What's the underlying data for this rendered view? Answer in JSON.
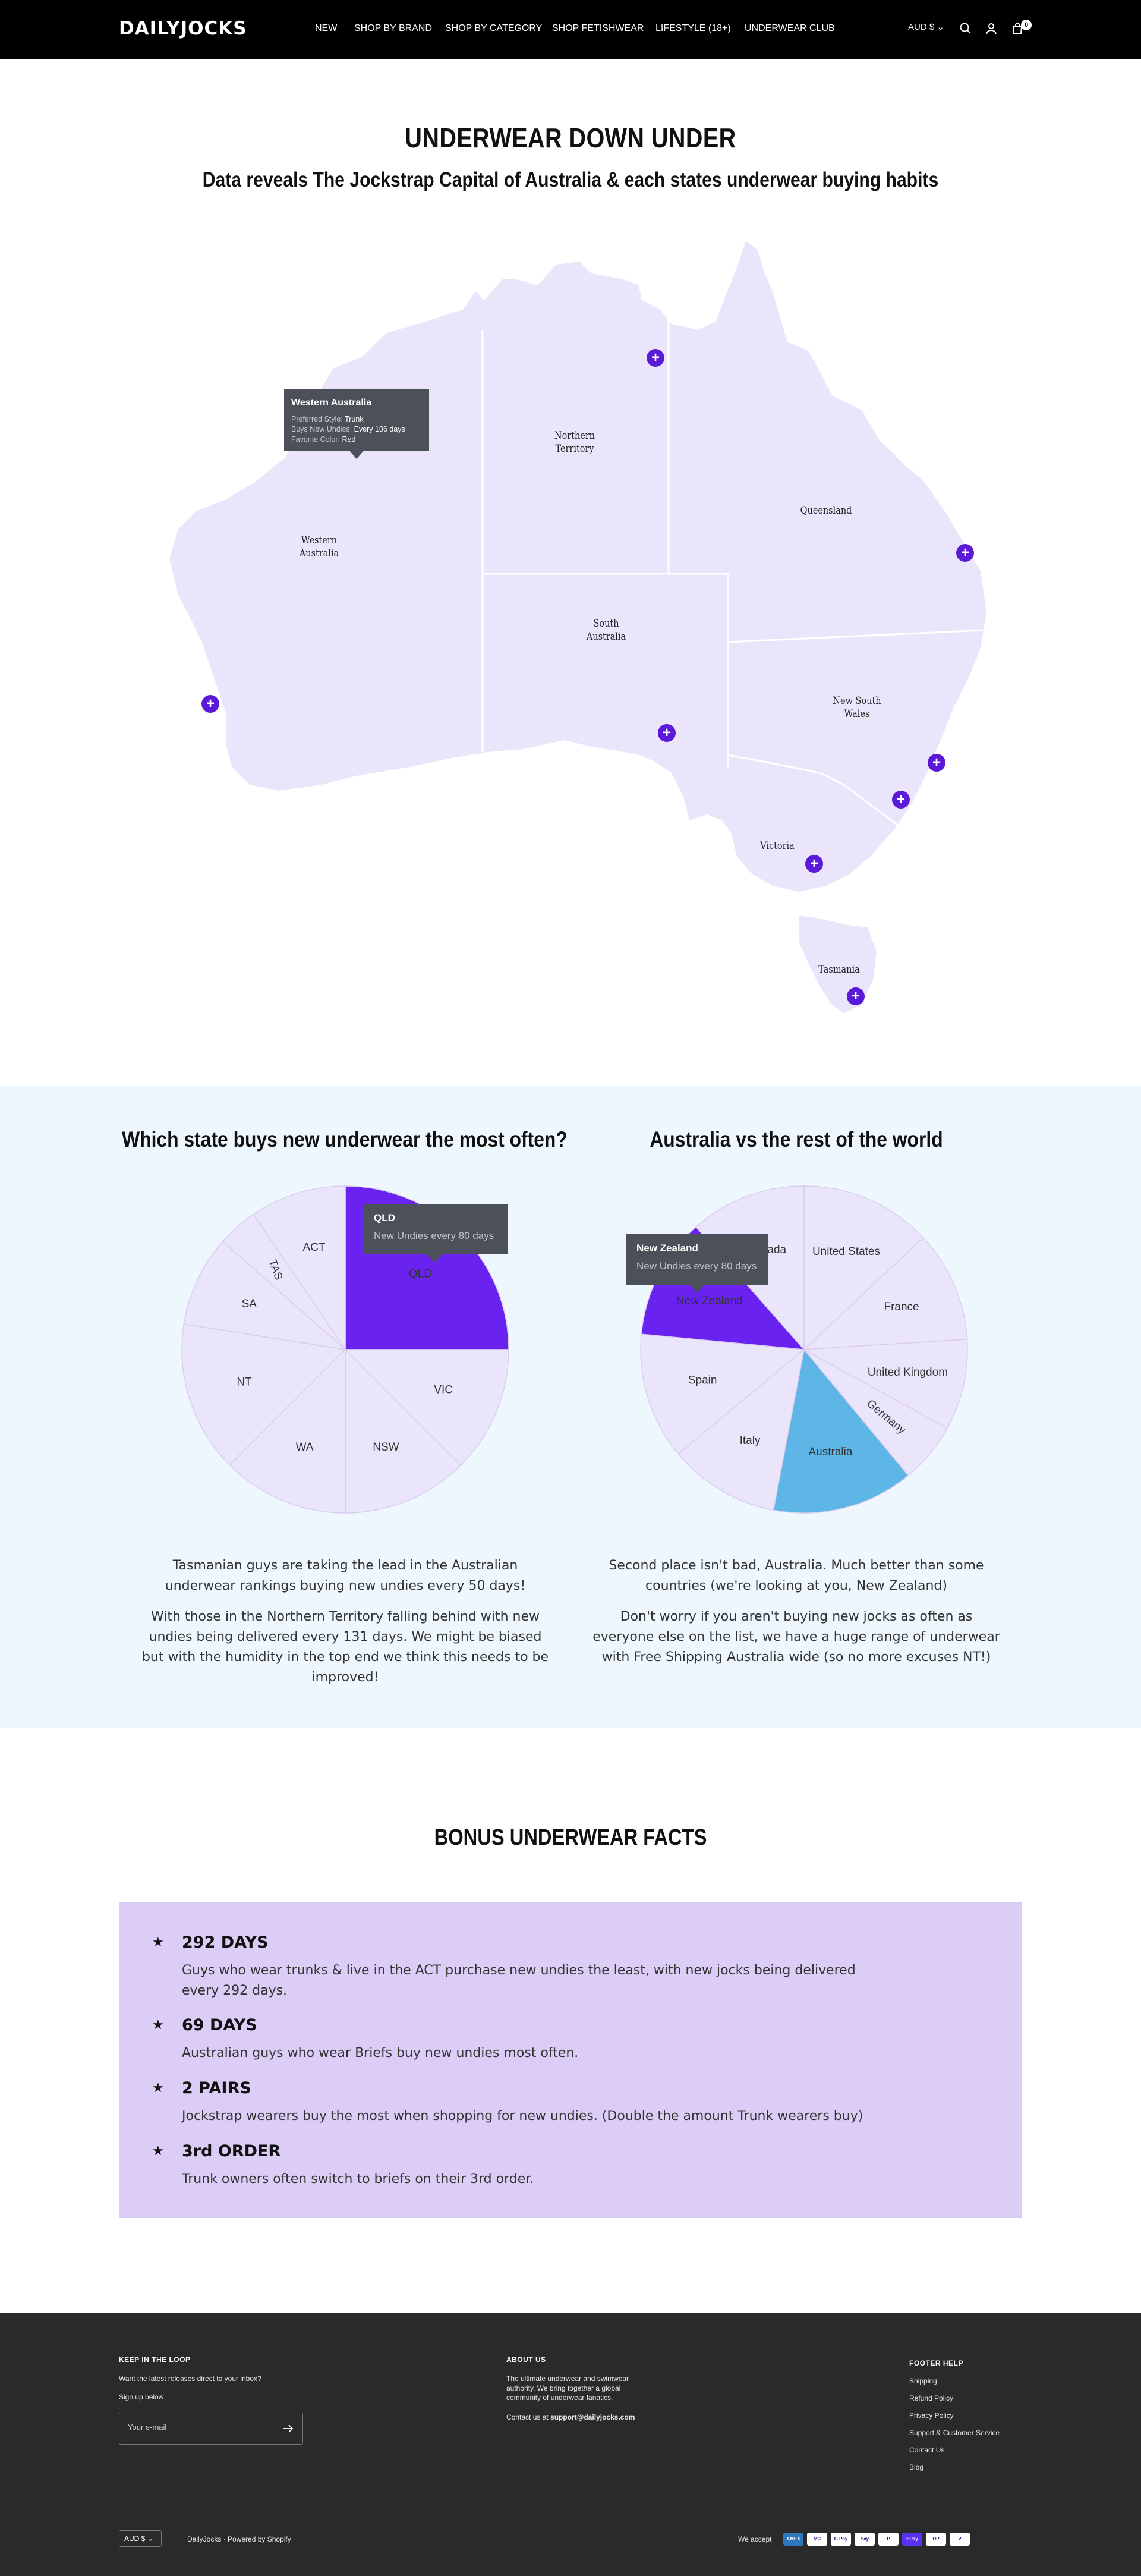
{
  "header": {
    "logo": "DAILYJOCKS",
    "nav": [
      "NEW",
      "SHOP BY BRAND",
      "SHOP BY CATEGORY",
      "SHOP FETISHWEAR",
      "LIFESTYLE (18+)",
      "UNDERWEAR CLUB"
    ],
    "currency": "AUD $",
    "cart_count": "0",
    "icons": [
      "search-icon",
      "account-icon",
      "cart-icon"
    ]
  },
  "hero": {
    "title": "UNDERWEAR DOWN UNDER",
    "subtitle": "Data reveals The Jockstrap Capital of Australia & each states underwear buying habits"
  },
  "map": {
    "states": [
      {
        "name": "Western\nAustralia"
      },
      {
        "name": "Northern\nTerritory"
      },
      {
        "name": "Queensland"
      },
      {
        "name": "South\nAustralia"
      },
      {
        "name": "New South\nWales"
      },
      {
        "name": "Victoria"
      },
      {
        "name": "Tasmania"
      }
    ],
    "tooltip": {
      "title": "Western Australia",
      "rows": [
        {
          "label": "Preferred Style:",
          "value": "Trunk"
        },
        {
          "label": "Buys New Undies:",
          "value": "Every 106 days"
        },
        {
          "label": "Favorite Color:",
          "value": "Red"
        }
      ]
    },
    "colors": {
      "land": "#ebe5fb",
      "border": "#ffffff",
      "marker": "#5a1ad8"
    }
  },
  "pies": {
    "left": {
      "title": "Which state buys new underwear the most often?",
      "tooltip": {
        "title": "QLD",
        "text": "New Undies every 80 days"
      },
      "paragraphs": [
        "Tasmanian guys are taking the lead in the Australian underwear rankings buying new undies every 50 days!",
        "With those in the Northern Territory falling behind with new undies being delivered every 131 days. We might be biased but with the humidity in the top end we think this needs to be improved!"
      ]
    },
    "right": {
      "title": "Australia vs the rest of the world",
      "tooltip": {
        "title": "New Zealand",
        "text": "New Undies every 80 days"
      },
      "paragraphs": [
        "Second place isn't bad, Australia. Much better than some countries (we're looking at you, New Zealand)",
        "Don't worry if you aren't buying new jocks as often as everyone else on the list, we have a huge range of underwear with Free Shipping Australia wide (so no more excuses NT!)"
      ]
    }
  },
  "chart_data": [
    {
      "type": "pie",
      "labels": [
        "QLD",
        "VIC",
        "NSW",
        "WA",
        "NT",
        "SA",
        "TAS",
        "ACT"
      ],
      "values": [
        25,
        12.5,
        12.5,
        12.5,
        15,
        9,
        4,
        9.5
      ],
      "highlight": "QLD",
      "colors": {
        "base": "#ebe5fb",
        "highlight": "#6a22f0"
      }
    },
    {
      "type": "pie",
      "labels": [
        "United States",
        "France",
        "United Kingdom",
        "Germany",
        "Australia",
        "Italy",
        "Spain",
        "New Zealand",
        "Canada"
      ],
      "values": [
        13,
        11,
        9,
        6,
        14,
        11,
        12.5,
        12,
        11.5
      ],
      "highlight": [
        "New Zealand",
        "Australia"
      ],
      "colors": {
        "base": "#ebe5fb",
        "New Zealand": "#6a22f0",
        "Australia": "#5db6e6"
      }
    }
  ],
  "bonus": {
    "title": "BONUS UNDERWEAR FACTS",
    "facts": [
      {
        "title": "292 DAYS",
        "text": "Guys who wear trunks & live in the ACT purchase new undies the least, with new jocks being delivered every 292 days."
      },
      {
        "title": "69 DAYS",
        "text": "Australian guys who wear Briefs buy new undies most often."
      },
      {
        "title": "2 PAIRS",
        "text": "Jockstrap wearers buy the most when shopping for new undies. (Double the amount Trunk wearers buy)"
      },
      {
        "title": "3rd ORDER",
        "text": "Trunk owners often switch to briefs on their 3rd order."
      }
    ]
  },
  "footer": {
    "loop_heading": "KEEP IN THE LOOP",
    "loop_text": "Want the latest releases direct to your inbox?",
    "signup": "Sign up below",
    "email_placeholder": "Your e-mail",
    "about_heading": "ABOUT US",
    "about_text": "The ultimate underwear and swimwear authority. We bring together a global community of underwear fanatics.",
    "contact_prefix": "Contact us at ",
    "contact_email": "support@dailyjocks.com",
    "help_heading": "FOOTER HELP",
    "help_links": [
      "Shipping",
      "Refund Policy",
      "Privacy Policy",
      "Support & Customer Service",
      "Contact Us",
      "Blog"
    ],
    "currency": "AUD $",
    "brand": "DailyJocks",
    "powered": "Powered by Shopify",
    "we_accept": "We accept",
    "payments": [
      {
        "name": "AMEX",
        "color": "#2e77bc"
      },
      {
        "name": "MC",
        "color": "#ffffff"
      },
      {
        "name": "G Pay",
        "color": "#ffffff"
      },
      {
        "name": "Pay",
        "color": "#ffffff"
      },
      {
        "name": "P",
        "color": "#ffffff"
      },
      {
        "name": "SPay",
        "color": "#5a31f4"
      },
      {
        "name": "UP",
        "color": "#ffffff"
      },
      {
        "name": "V",
        "color": "#ffffff"
      }
    ]
  }
}
